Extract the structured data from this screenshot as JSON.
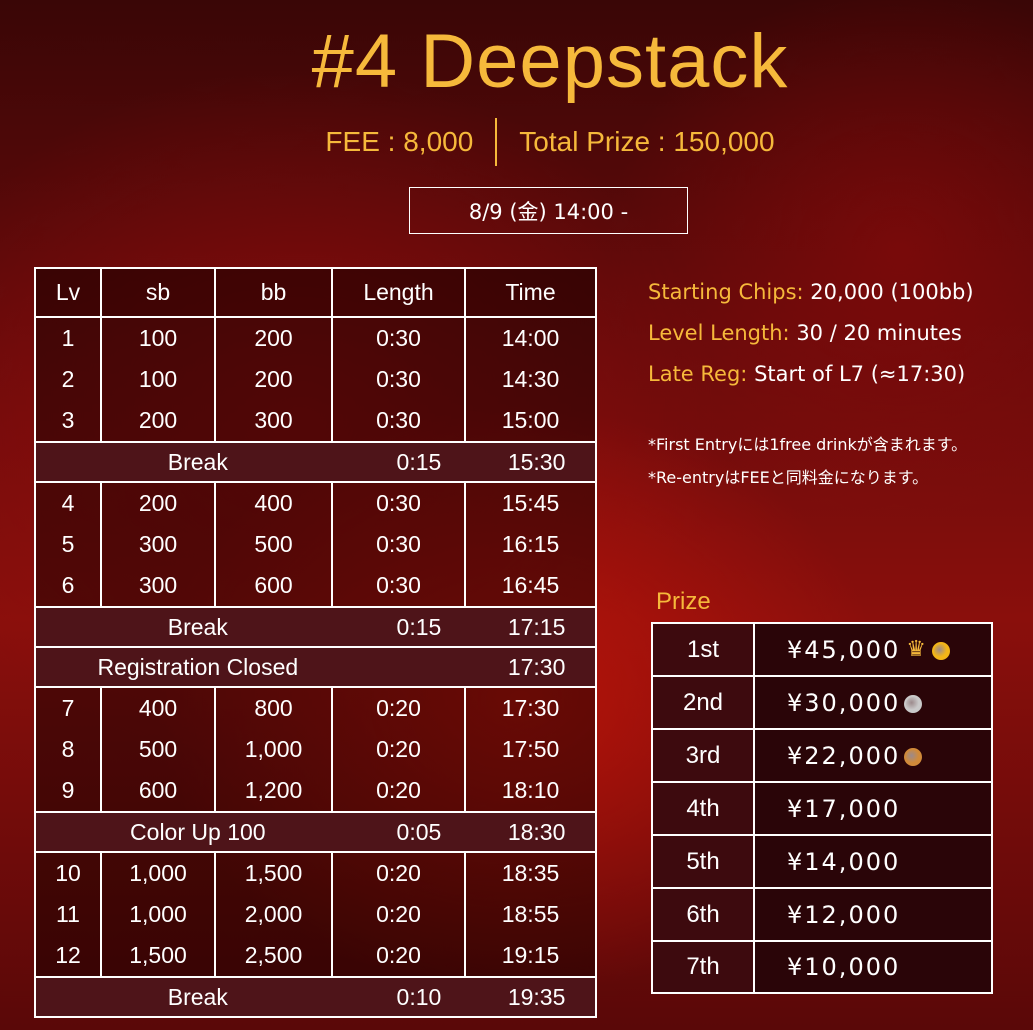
{
  "header": {
    "title": "#4 Deepstack",
    "fee": "FEE : 8,000",
    "total_prize": "Total Prize : 150,000",
    "date": "8/9 (金) 14:00 -"
  },
  "schedule": {
    "columns": [
      "Lv",
      "sb",
      "bb",
      "Length",
      "Time"
    ],
    "groups": [
      {
        "type": "levels",
        "rows": [
          [
            "1",
            "100",
            "200",
            "0:30",
            "14:00"
          ],
          [
            "2",
            "100",
            "200",
            "0:30",
            "14:30"
          ],
          [
            "3",
            "200",
            "300",
            "0:30",
            "15:00"
          ]
        ]
      },
      {
        "type": "break",
        "label": "Break",
        "length": "0:15",
        "time": "15:30"
      },
      {
        "type": "levels",
        "rows": [
          [
            "4",
            "200",
            "400",
            "0:30",
            "15:45"
          ],
          [
            "5",
            "300",
            "500",
            "0:30",
            "16:15"
          ],
          [
            "6",
            "300",
            "600",
            "0:30",
            "16:45"
          ]
        ]
      },
      {
        "type": "break",
        "label": "Break",
        "length": "0:15",
        "time": "17:15"
      },
      {
        "type": "break",
        "label": "Registration Closed",
        "length": "",
        "time": "17:30"
      },
      {
        "type": "levels",
        "rows": [
          [
            "7",
            "400",
            "800",
            "0:20",
            "17:30"
          ],
          [
            "8",
            "500",
            "1,000",
            "0:20",
            "17:50"
          ],
          [
            "9",
            "600",
            "1,200",
            "0:20",
            "18:10"
          ]
        ]
      },
      {
        "type": "break",
        "label": "Color Up 100",
        "length": "0:05",
        "time": "18:30"
      },
      {
        "type": "levels",
        "rows": [
          [
            "10",
            "1,000",
            "1,500",
            "0:20",
            "18:35"
          ],
          [
            "11",
            "1,000",
            "2,000",
            "0:20",
            "18:55"
          ],
          [
            "12",
            "1,500",
            "2,500",
            "0:20",
            "19:15"
          ]
        ]
      },
      {
        "type": "break",
        "label": "Break",
        "length": "0:10",
        "time": "19:35"
      }
    ]
  },
  "info": {
    "starting_chips_label": "Starting Chips:",
    "starting_chips_value": "20,000 (100bb)",
    "level_length_label": "Level Length:",
    "level_length_value": "30 / 20 minutes",
    "late_reg_label": "Late Reg:",
    "late_reg_value": "Start of L7 (≈17:30)",
    "note1": "*First Entryには1free drinkが含まれます。",
    "note2": "*Re-entryはFEEと同料金になります。"
  },
  "prize": {
    "title": "Prize",
    "rows": [
      {
        "place": "1st",
        "amount": "¥45,000",
        "icons": [
          "trophy-icon",
          "gold-medal-icon"
        ]
      },
      {
        "place": "2nd",
        "amount": "¥30,000",
        "icons": [
          "silver-medal-icon"
        ]
      },
      {
        "place": "3rd",
        "amount": "¥22,000",
        "icons": [
          "bronze-medal-icon"
        ]
      },
      {
        "place": "4th",
        "amount": "¥17,000",
        "icons": []
      },
      {
        "place": "5th",
        "amount": "¥14,000",
        "icons": []
      },
      {
        "place": "6th",
        "amount": "¥12,000",
        "icons": []
      },
      {
        "place": "7th",
        "amount": "¥10,000",
        "icons": []
      }
    ],
    "colors": {
      "gold": "#f2b518",
      "silver": "#c9c9c9",
      "bronze": "#d08a3a"
    }
  },
  "colors": {
    "accent": "#f6b93b",
    "break_row": "#4e1419"
  }
}
